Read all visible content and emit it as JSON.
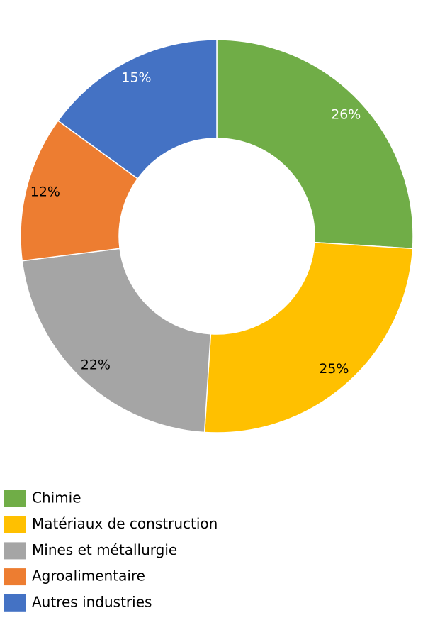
{
  "chart_data": {
    "type": "donut",
    "categories": [
      "Chimie",
      "Matériaux de construction",
      "Mines et métallurgie",
      "Agroalimentaire",
      "Autres industries"
    ],
    "values": [
      26,
      25,
      22,
      12,
      15
    ],
    "value_labels": [
      "26%",
      "25%",
      "22%",
      "12%",
      "15%"
    ],
    "colors": [
      "#70ad47",
      "#ffc000",
      "#a5a5a5",
      "#ed7d31",
      "#4472c4"
    ],
    "label_colors": [
      "#ffffff",
      "#000000",
      "#000000",
      "#000000",
      "#ffffff"
    ],
    "legend": "bottom"
  }
}
